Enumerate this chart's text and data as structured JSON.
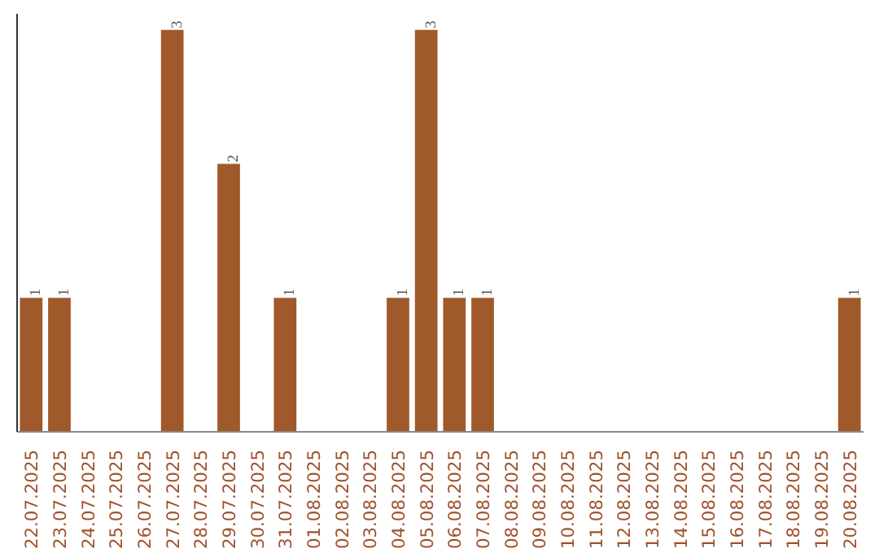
{
  "chart_data": {
    "type": "bar",
    "categories": [
      "22.07.2025",
      "23.07.2025",
      "24.07.2025",
      "25.07.2025",
      "26.07.2025",
      "27.07.2025",
      "28.07.2025",
      "29.07.2025",
      "30.07.2025",
      "31.07.2025",
      "01.08.2025",
      "02.08.2025",
      "03.08.2025",
      "04.08.2025",
      "05.08.2025",
      "06.08.2025",
      "07.08.2025",
      "08.08.2025",
      "09.08.2025",
      "10.08.2025",
      "11.08.2025",
      "12.08.2025",
      "13.08.2025",
      "14.08.2025",
      "15.08.2025",
      "16.08.2025",
      "17.08.2025",
      "18.08.2025",
      "19.08.2025",
      "20.08.2025"
    ],
    "values": [
      1,
      1,
      0,
      0,
      0,
      3,
      0,
      2,
      0,
      1,
      0,
      0,
      0,
      1,
      3,
      1,
      1,
      0,
      0,
      0,
      0,
      0,
      0,
      0,
      0,
      0,
      0,
      0,
      0,
      1
    ],
    "value_labels": [
      "1",
      "1",
      null,
      null,
      null,
      "3",
      null,
      "2",
      null,
      "1",
      null,
      null,
      null,
      "1",
      "3",
      "1",
      "1",
      null,
      null,
      null,
      null,
      null,
      null,
      null,
      null,
      null,
      null,
      null,
      null,
      "1"
    ],
    "color": "#a0592b",
    "grid": false
  }
}
